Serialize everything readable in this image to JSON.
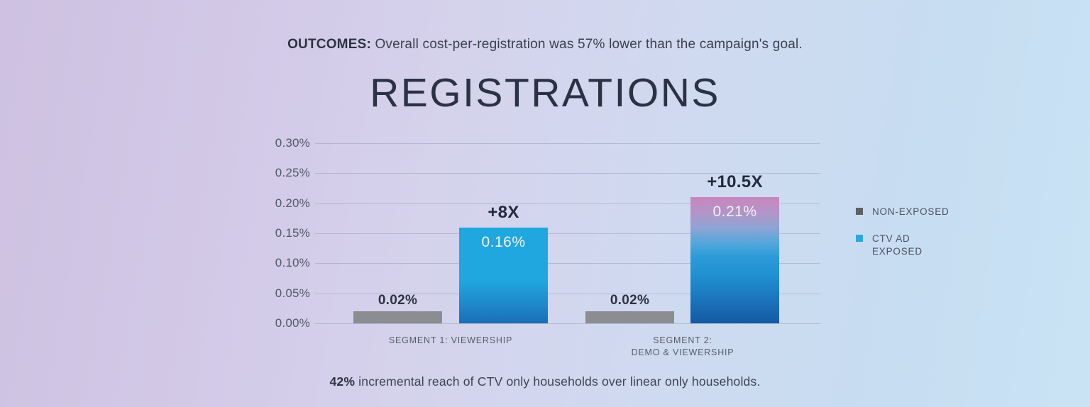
{
  "header": {
    "lead": "OUTCOMES:",
    "text": " Overall cost-per-registration was 57% lower than the campaign's goal."
  },
  "footer": {
    "lead": "42%",
    "text": " incremental reach of CTV only households over linear only households."
  },
  "chart_data": {
    "type": "bar",
    "title": "REGISTRATIONS",
    "xlabel": "",
    "ylabel": "",
    "unit": "%",
    "categories": [
      "SEGMENT 1: VIEWERSHIP",
      "SEGMENT 2:\nDEMO & VIEWERSHIP"
    ],
    "series": [
      {
        "name": "NON-EXPOSED",
        "values": [
          0.02,
          0.02
        ],
        "value_labels": [
          "0.02%",
          "0.02%"
        ],
        "label_position": "above",
        "color": "#8b8d91"
      },
      {
        "name": "CTV AD EXPOSED",
        "values": [
          0.16,
          0.21
        ],
        "value_labels": [
          "0.16%",
          "0.21%"
        ],
        "label_position": "inside",
        "gradients": [
          [
            {
              "color": "#21a7e0",
              "pos": 0
            },
            {
              "color": "#21a7e0",
              "pos": 55
            },
            {
              "color": "#1e86c9",
              "pos": 82
            },
            {
              "color": "#1b6db6",
              "pos": 100
            }
          ],
          [
            {
              "color": "#c986bd",
              "pos": 0
            },
            {
              "color": "#b394c8",
              "pos": 12
            },
            {
              "color": "#8fa4d3",
              "pos": 24
            },
            {
              "color": "#55a7db",
              "pos": 36
            },
            {
              "color": "#2a9ad8",
              "pos": 48
            },
            {
              "color": "#2090d1",
              "pos": 62
            },
            {
              "color": "#1c79bf",
              "pos": 78
            },
            {
              "color": "#1459a4",
              "pos": 100
            }
          ]
        ]
      }
    ],
    "annotations": [
      {
        "text": "+8X",
        "category_index": 0
      },
      {
        "text": "+10.5X",
        "category_index": 1
      }
    ],
    "ylim": [
      0,
      0.3
    ],
    "yticks": [
      "0.30%",
      "0.25%",
      "0.20%",
      "0.15%",
      "0.10%",
      "0.05%",
      "0.00%"
    ],
    "grid": true,
    "legend_position": "right",
    "legend": [
      {
        "label": "NON-EXPOSED",
        "color": "#5d6064"
      },
      {
        "label": "CTV AD\nEXPOSED",
        "color": "#29a8e0"
      }
    ]
  }
}
